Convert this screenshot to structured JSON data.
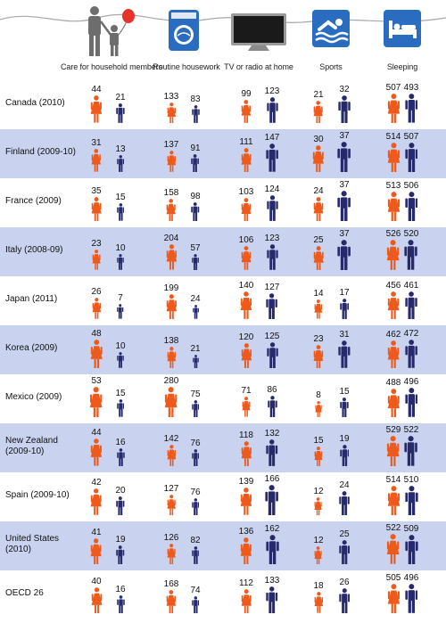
{
  "colors": {
    "female": "#ee5a1c",
    "male": "#262a6b",
    "row_light": "#ffffff",
    "row_dark": "#c9d2ee",
    "icon_blue": "#2a6cc0"
  },
  "icons": [
    "family-with-balloon-icon",
    "washing-machine-icon",
    "television-icon",
    "swimmer-icon",
    "bed-icon"
  ],
  "chart_data": {
    "type": "table",
    "unit_note": "",
    "columns": [
      "Care for household members",
      "Routine housework",
      "TV or radio at home",
      "Sports",
      "Sleeping"
    ],
    "series_order": [
      "female",
      "male"
    ],
    "rows": [
      {
        "label": "Canada (2010)",
        "values": [
          [
            44,
            21
          ],
          [
            133,
            83
          ],
          [
            99,
            123
          ],
          [
            21,
            32
          ],
          [
            507,
            493
          ]
        ]
      },
      {
        "label": "Finland (2009-10)",
        "values": [
          [
            31,
            13
          ],
          [
            137,
            91
          ],
          [
            111,
            147
          ],
          [
            30,
            37
          ],
          [
            514,
            507
          ]
        ]
      },
      {
        "label": "France (2009)",
        "values": [
          [
            35,
            15
          ],
          [
            158,
            98
          ],
          [
            103,
            124
          ],
          [
            24,
            37
          ],
          [
            513,
            506
          ]
        ]
      },
      {
        "label": "Italy (2008-09)",
        "values": [
          [
            23,
            10
          ],
          [
            204,
            57
          ],
          [
            106,
            123
          ],
          [
            25,
            37
          ],
          [
            526,
            520
          ]
        ]
      },
      {
        "label": "Japan (2011)",
        "values": [
          [
            26,
            7
          ],
          [
            199,
            24
          ],
          [
            140,
            127
          ],
          [
            14,
            17
          ],
          [
            456,
            461
          ]
        ]
      },
      {
        "label": "Korea (2009)",
        "values": [
          [
            48,
            10
          ],
          [
            138,
            21
          ],
          [
            120,
            125
          ],
          [
            23,
            31
          ],
          [
            462,
            472
          ]
        ]
      },
      {
        "label": "Mexico (2009)",
        "values": [
          [
            53,
            15
          ],
          [
            280,
            75
          ],
          [
            71,
            86
          ],
          [
            8,
            15
          ],
          [
            488,
            496
          ]
        ]
      },
      {
        "label": "New Zealand\n(2009-10)",
        "values": [
          [
            44,
            16
          ],
          [
            142,
            76
          ],
          [
            118,
            132
          ],
          [
            15,
            19
          ],
          [
            529,
            522
          ]
        ]
      },
      {
        "label": "Spain (2009-10)",
        "values": [
          [
            42,
            20
          ],
          [
            127,
            76
          ],
          [
            139,
            166
          ],
          [
            12,
            24
          ],
          [
            514,
            510
          ]
        ]
      },
      {
        "label": "United States\n(2010)",
        "values": [
          [
            41,
            19
          ],
          [
            126,
            82
          ],
          [
            136,
            162
          ],
          [
            12,
            25
          ],
          [
            522,
            509
          ]
        ]
      },
      {
        "label": "OECD 26",
        "values": [
          [
            40,
            16
          ],
          [
            168,
            74
          ],
          [
            112,
            133
          ],
          [
            18,
            26
          ],
          [
            505,
            496
          ]
        ]
      }
    ]
  }
}
